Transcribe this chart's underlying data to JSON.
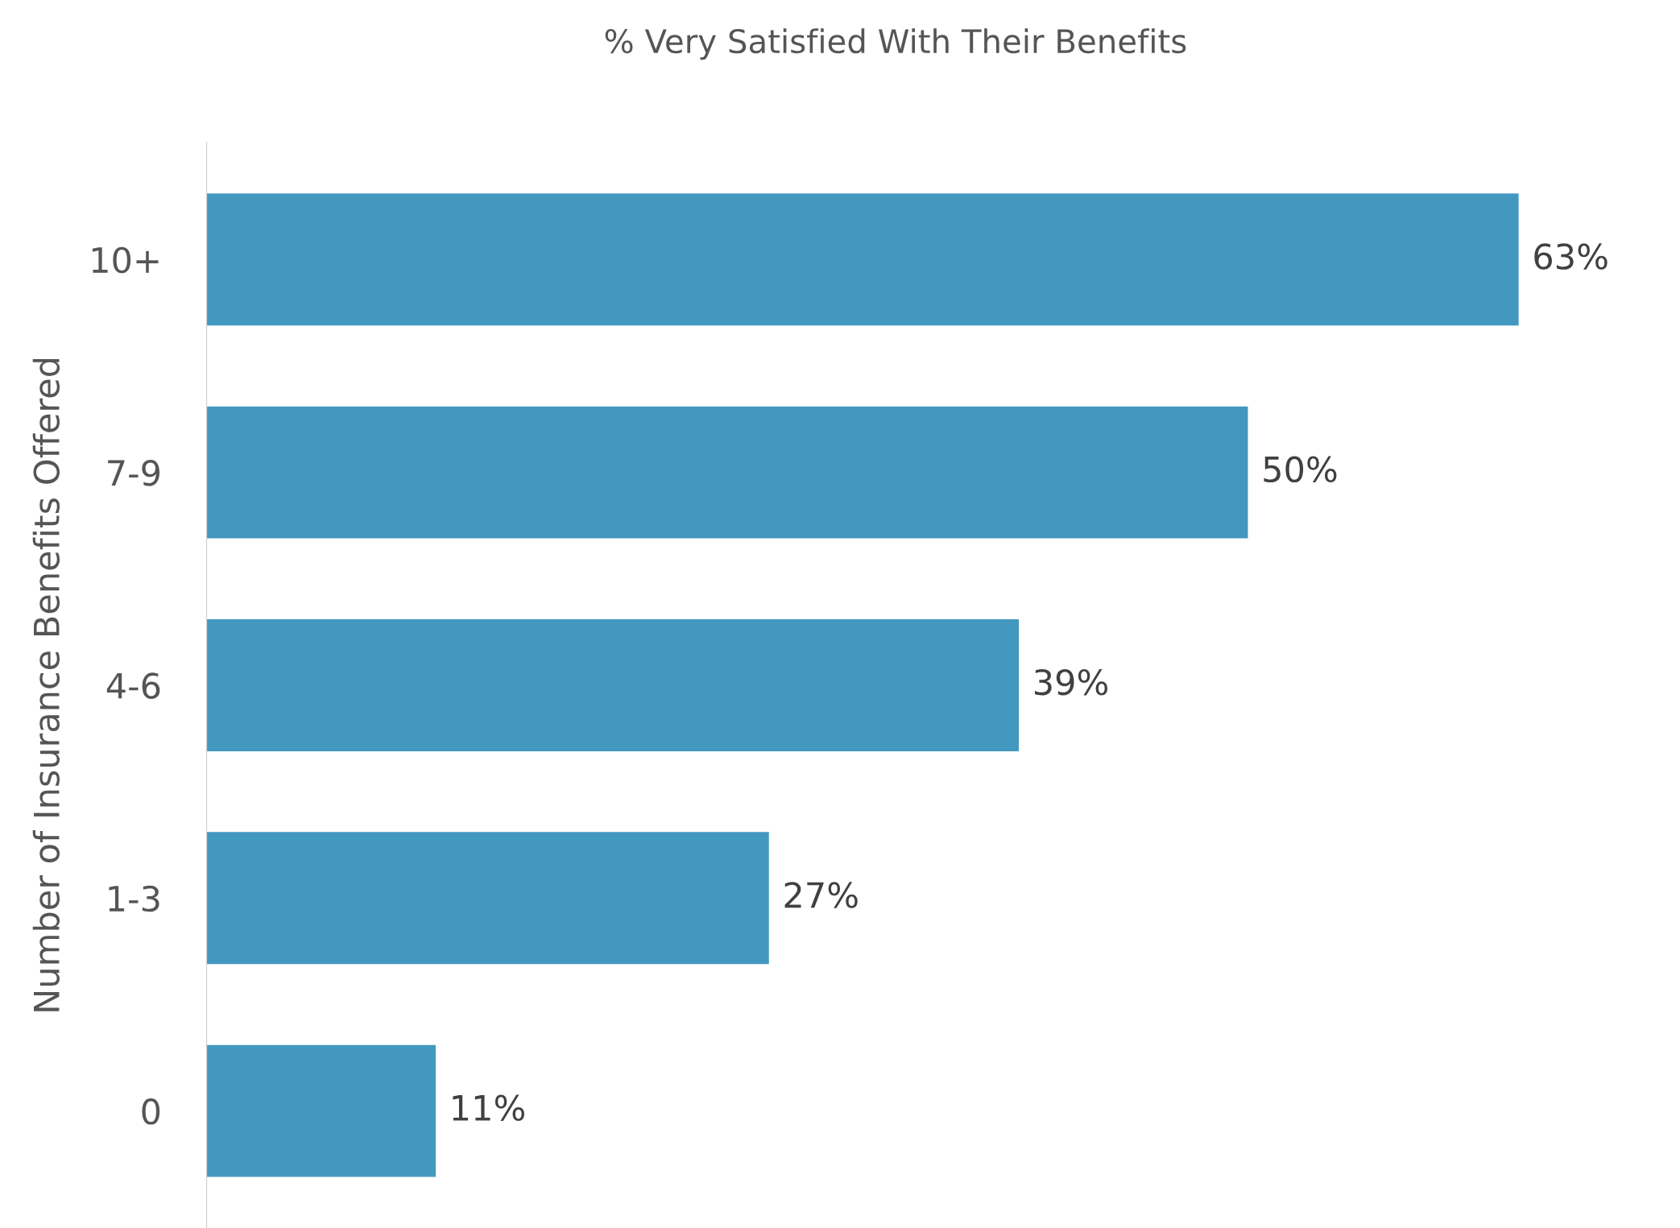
{
  "chart_data": {
    "type": "bar",
    "orientation": "horizontal",
    "title": "% Very Satisfied With Their Benefits",
    "ylabel": "Number of Insurance Benefits Offered",
    "categories": [
      "10+",
      "7-9",
      "4-6",
      "1-3",
      "0"
    ],
    "values": [
      63,
      50,
      39,
      27,
      11
    ],
    "value_labels": [
      "63%",
      "50%",
      "39%",
      "27%",
      "11%"
    ],
    "color": "#4398c0",
    "grid": false,
    "legend": false
  }
}
